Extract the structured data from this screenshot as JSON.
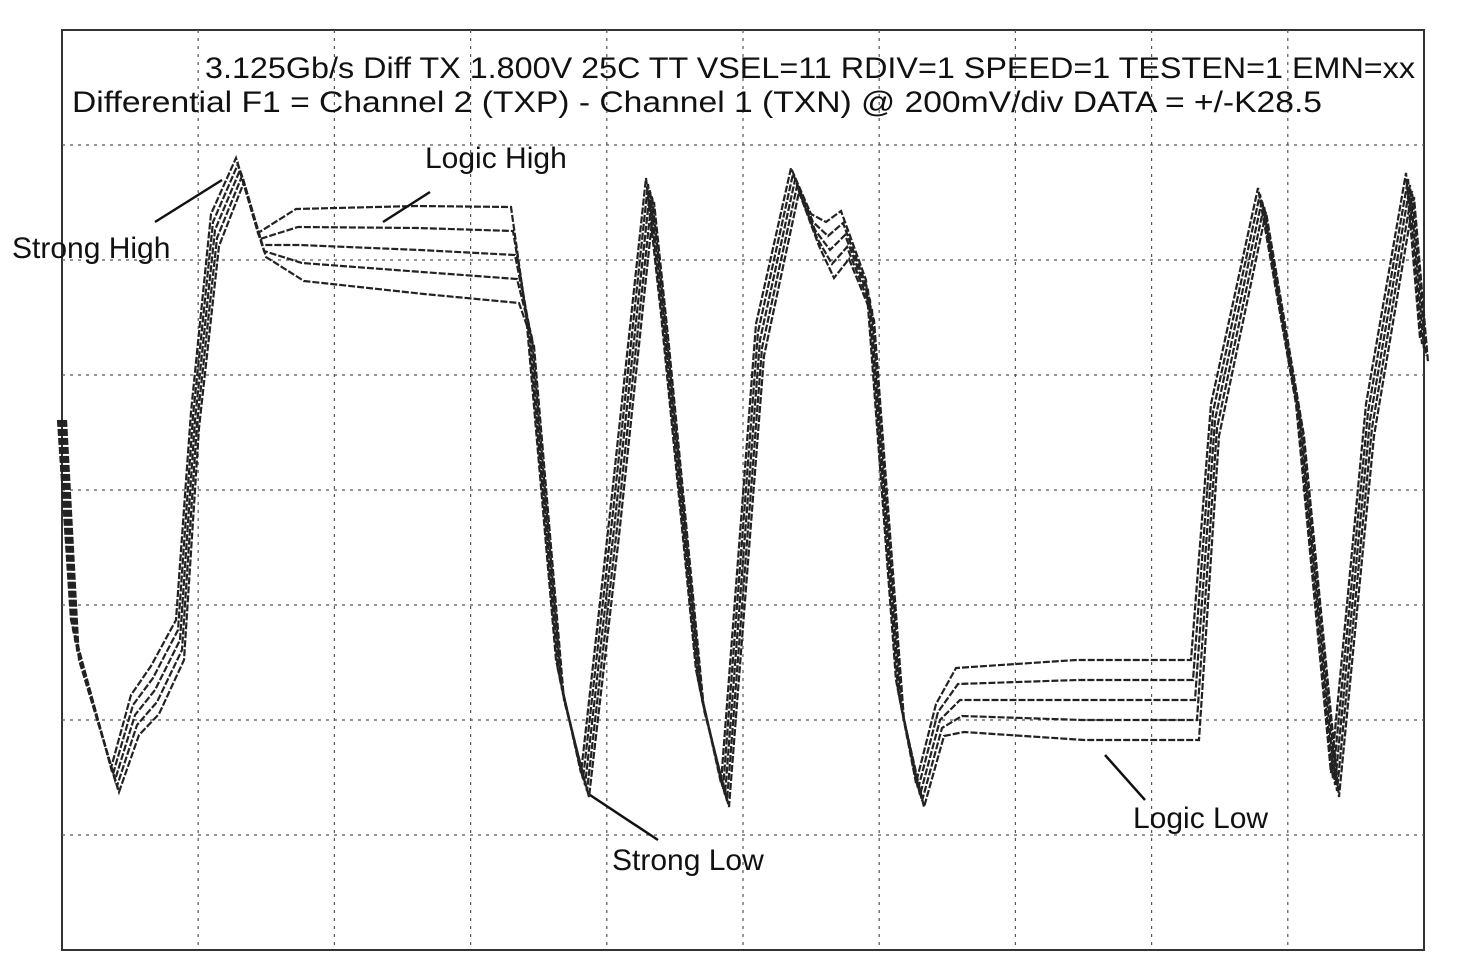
{
  "header": {
    "line1": "3.125Gb/s Diff TX 1.800V 25C TT VSEL=11 RDIV=1 SPEED=1 TESTEN=1 EMN=xx",
    "line2": "Differential F1 = Channel 2 (TXP) - Channel 1 (TXN) @ 200mV/div DATA = +/-K28.5"
  },
  "annotations": {
    "strong_high": "Strong High",
    "logic_high": "Logic High",
    "strong_low": "Strong Low",
    "logic_low": "Logic Low"
  }
}
